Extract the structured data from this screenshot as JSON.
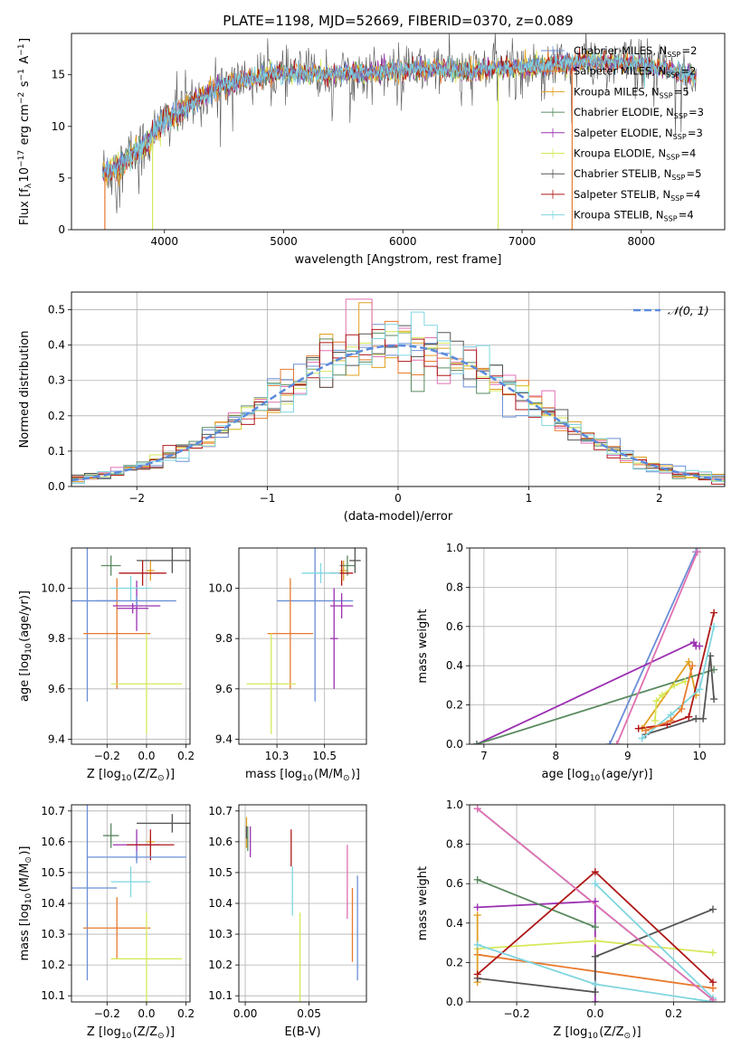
{
  "figure_title": "PLATE=1198, MJD=52669, FIBERID=0370, z=0.089",
  "series": [
    {
      "key": "chab_miles",
      "label": "Chabrier MILES, N<sub>SSP</sub>=2",
      "color": "#6b8fd6"
    },
    {
      "key": "salp_miles",
      "label": "Salpeter MILES, N<sub>SSP</sub>=2",
      "color": "#e87a2e"
    },
    {
      "key": "krou_miles",
      "label": "Kroupa MILES, N<sub>SSP</sub>=5",
      "color": "#e0a020"
    },
    {
      "key": "chab_elodie",
      "label": "Chabrier ELODIE, N<sub>SSP</sub>=3",
      "color": "#5a8a60"
    },
    {
      "key": "salp_elodie",
      "label": "Salpeter ELODIE, N<sub>SSP</sub>=3",
      "color": "#9b30b0"
    },
    {
      "key": "krou_elodie",
      "label": "Kroupa ELODIE, N<sub>SSP</sub>=4",
      "color": "#d6e85a"
    },
    {
      "key": "chab_stelib",
      "label": "Chabrier STELIB, N<sub>SSP</sub>=5",
      "color": "#555555"
    },
    {
      "key": "salp_stelib",
      "label": "Salpeter STELIB, N<sub>SSP</sub>=4",
      "color": "#b01818"
    },
    {
      "key": "krou_stelib",
      "label": "Kroupa STELIB, N<sub>SSP</sub>=4",
      "color": "#7fd6e0"
    }
  ],
  "chart_data": [
    {
      "id": "spectrum",
      "type": "line",
      "title": "PLATE=1198, MJD=52669, FIBERID=0370, z=0.089",
      "xlabel": "wavelength [Angstrom, rest frame]",
      "ylabel": "Flux [f<sub>λ</sub>10<sup>−17</sup> erg cm<sup>−2</sup> s<sup>−1</sup> A<sup>−1</sup>]",
      "xlim": [
        3220,
        8700
      ],
      "ylim": [
        0,
        19
      ],
      "xticks": [
        4000,
        5000,
        6000,
        7000,
        8000
      ],
      "yticks": [
        0,
        5,
        10,
        15
      ],
      "grid": false,
      "legend": "right",
      "continuum": {
        "x": [
          3480,
          3600,
          3700,
          3800,
          3900,
          4000,
          4100,
          4200,
          4300,
          4400,
          4500,
          4700,
          4900,
          5100,
          5300,
          5500,
          5700,
          5900,
          6100,
          6300,
          6500,
          6700,
          6900,
          7100,
          7300,
          7500,
          7700,
          7900,
          8100,
          8300,
          8450
        ],
        "y": [
          5.5,
          6.0,
          7.0,
          7.8,
          9.0,
          10.5,
          11.2,
          12.0,
          12.8,
          13.5,
          14.0,
          14.6,
          15.0,
          15.2,
          15.0,
          15.1,
          15.2,
          15.4,
          15.5,
          15.6,
          15.3,
          15.6,
          15.7,
          15.8,
          16.0,
          16.3,
          16.2,
          16.1,
          15.8,
          15.3,
          14.8
        ]
      }
    },
    {
      "id": "residuals",
      "type": "histogram",
      "xlabel": "(data-model)/error",
      "ylabel": "Normed distribution",
      "xlim": [
        -2.5,
        2.5
      ],
      "ylim": [
        0,
        0.55
      ],
      "xticks": [
        -2,
        -1,
        0,
        1,
        2
      ],
      "yticks": [
        0.0,
        0.1,
        0.2,
        0.3,
        0.4,
        0.5
      ],
      "grid": true,
      "legend": "top-right",
      "gauss_label": "𝒩(0, 1)",
      "gauss_color": "#5b8bdc",
      "bin_width": 0.1
    },
    {
      "id": "z_age",
      "type": "scatter",
      "xlabel": "Z [log<sub>10</sub>(Z/Z<sub>⊙</sub>)]",
      "ylabel": "age  [log<sub>10</sub>(age/yr)]",
      "xlim": [
        -0.38,
        0.22
      ],
      "ylim": [
        9.38,
        10.16
      ],
      "xticks": [
        -0.2,
        0.0,
        0.2
      ],
      "yticks": [
        9.4,
        9.6,
        9.8,
        10.0
      ],
      "grid": true,
      "points": [
        {
          "s": "chab_miles",
          "x": -0.3,
          "y": 9.95,
          "xe": 0.15,
          "ye": 0.4
        },
        {
          "s": "salp_miles",
          "x": -0.15,
          "y": 9.82,
          "xe": 0.17,
          "ye": 0.22
        },
        {
          "s": "krou_miles",
          "x": 0.02,
          "y": 10.07,
          "xe": 0.02,
          "ye": 0.04
        },
        {
          "s": "chab_elodie",
          "x": -0.18,
          "y": 10.09,
          "xe": 0.05,
          "ye": 0.04
        },
        {
          "s": "salp_elodie",
          "x": -0.05,
          "y": 9.93,
          "xe": 0.12,
          "ye": 0.1
        },
        {
          "s": "krou_elodie",
          "x": 0.0,
          "y": 9.62,
          "xe": 0.18,
          "ye": 0.2
        },
        {
          "s": "chab_stelib",
          "x": 0.13,
          "y": 10.11,
          "xe": 0.18,
          "ye": 0.05
        },
        {
          "s": "salp_stelib",
          "x": -0.02,
          "y": 10.06,
          "xe": 0.12,
          "ye": 0.05
        },
        {
          "s": "krou_stelib",
          "x": -0.08,
          "y": 10.0,
          "xe": 0.1,
          "ye": 0.05
        },
        {
          "s": "chab_miles",
          "x": -0.05,
          "y": 9.95,
          "xe": 0.2,
          "ye": 0.02
        },
        {
          "s": "salp_elodie",
          "x": -0.07,
          "y": 9.92,
          "xe": 0.08,
          "ye": 0.02
        }
      ]
    },
    {
      "id": "mass_age",
      "type": "scatter",
      "xlabel": "mass [log<sub>10</sub>(M/M<sub>⊙</sub>)]",
      "ylabel": "",
      "xlim": [
        10.05,
        10.72
      ],
      "ylim": [
        9.38,
        10.16
      ],
      "xticks": [
        10.25,
        10.5
      ],
      "yticks": [
        9.4,
        9.6,
        9.8,
        10.0
      ],
      "grid": true,
      "points": [
        {
          "s": "chab_miles",
          "x": 10.45,
          "y": 9.95,
          "xe": 0.2,
          "ye": 0.4
        },
        {
          "s": "salp_miles",
          "x": 10.32,
          "y": 9.82,
          "xe": 0.12,
          "ye": 0.22
        },
        {
          "s": "krou_miles",
          "x": 10.6,
          "y": 10.07,
          "xe": 0.02,
          "ye": 0.04
        },
        {
          "s": "chab_elodie",
          "x": 10.62,
          "y": 10.09,
          "xe": 0.04,
          "ye": 0.04
        },
        {
          "s": "salp_elodie",
          "x": 10.59,
          "y": 9.93,
          "xe": 0.06,
          "ye": 0.05
        },
        {
          "s": "krou_elodie",
          "x": 10.22,
          "y": 9.62,
          "xe": 0.13,
          "ye": 0.2
        },
        {
          "s": "chab_stelib",
          "x": 10.66,
          "y": 10.11,
          "xe": 0.03,
          "ye": 0.05
        },
        {
          "s": "salp_stelib",
          "x": 10.59,
          "y": 10.06,
          "xe": 0.06,
          "ye": 0.05
        },
        {
          "s": "krou_stelib",
          "x": 10.48,
          "y": 10.06,
          "xe": 0.1,
          "ye": 0.04
        },
        {
          "s": "salp_elodie",
          "x": 10.55,
          "y": 9.8,
          "xe": 0.02,
          "ye": 0.2
        }
      ]
    },
    {
      "id": "age_weight",
      "type": "line",
      "xlabel": "age  [log<sub>10</sub>(age/yr)]",
      "ylabel": "mass weight",
      "xlim": [
        6.8,
        10.35
      ],
      "ylim": [
        0,
        1.0
      ],
      "xticks": [
        7,
        8,
        9,
        10
      ],
      "yticks": [
        0.0,
        0.2,
        0.4,
        0.6,
        0.8,
        1.0
      ],
      "grid": true,
      "lines": [
        {
          "s": "chab_miles",
          "x": [
            8.75,
            9.95
          ],
          "y": [
            0.0,
            0.98
          ]
        },
        {
          "s": "salp_elodie",
          "x": [
            6.9,
            9.92,
            9.95,
            10.0
          ],
          "y": [
            0.0,
            0.52,
            0.5,
            0.5
          ]
        },
        {
          "s": "krou_miles",
          "x": [
            9.2,
            9.85,
            9.95
          ],
          "y": [
            0.08,
            0.42,
            0.25
          ]
        },
        {
          "s": "chab_elodie",
          "x": [
            6.9,
            10.2
          ],
          "y": [
            0.0,
            0.38
          ]
        },
        {
          "s": "krou_elodie",
          "x": [
            9.38,
            9.4,
            9.48,
            9.65,
            9.8
          ],
          "y": [
            0.12,
            0.22,
            0.25,
            0.3,
            0.32
          ]
        },
        {
          "s": "chab_stelib",
          "x": [
            9.25,
            9.95,
            10.05,
            10.15,
            10.2
          ],
          "y": [
            0.05,
            0.13,
            0.13,
            0.45,
            0.23
          ]
        },
        {
          "s": "salp_stelib",
          "x": [
            9.15,
            9.55,
            9.85,
            10.2
          ],
          "y": [
            0.08,
            0.1,
            0.14,
            0.67
          ]
        },
        {
          "s": "krou_stelib",
          "x": [
            9.2,
            9.6,
            10.0,
            10.2
          ],
          "y": [
            0.03,
            0.15,
            0.28,
            0.6
          ]
        },
        {
          "s": "salp_miles",
          "x": [
            9.25,
            9.6,
            9.75,
            9.9
          ],
          "y": [
            0.07,
            0.12,
            0.18,
            0.4
          ]
        },
        {
          "s": "krou_stelib",
          "x": [
            8.85,
            9.97
          ],
          "y": [
            0.0,
            0.98
          ],
          "color": "#e070b0"
        }
      ]
    },
    {
      "id": "z_mass",
      "type": "scatter",
      "xlabel": "Z [log<sub>10</sub>(Z/Z<sub>⊙</sub>)]",
      "ylabel": "mass [log<sub>10</sub>(M/M<sub>⊙</sub>)]",
      "xlim": [
        -0.38,
        0.22
      ],
      "ylim": [
        10.08,
        10.72
      ],
      "xticks": [
        -0.2,
        0.0,
        0.2
      ],
      "yticks": [
        10.1,
        10.2,
        10.3,
        10.4,
        10.5,
        10.6,
        10.7
      ],
      "grid": true,
      "points": [
        {
          "s": "chab_miles",
          "x": -0.3,
          "y": 10.45,
          "xe": 0.15,
          "ye": 0.3
        },
        {
          "s": "salp_miles",
          "x": -0.15,
          "y": 10.32,
          "xe": 0.17,
          "ye": 0.1
        },
        {
          "s": "krou_miles",
          "x": 0.02,
          "y": 10.6,
          "xe": 0.02,
          "ye": 0.02
        },
        {
          "s": "chab_elodie",
          "x": -0.18,
          "y": 10.62,
          "xe": 0.04,
          "ye": 0.04
        },
        {
          "s": "salp_elodie",
          "x": -0.05,
          "y": 10.59,
          "xe": 0.12,
          "ye": 0.05
        },
        {
          "s": "krou_elodie",
          "x": 0.0,
          "y": 10.22,
          "xe": 0.18,
          "ye": 0.15
        },
        {
          "s": "chab_stelib",
          "x": 0.13,
          "y": 10.66,
          "xe": 0.18,
          "ye": 0.03
        },
        {
          "s": "salp_stelib",
          "x": 0.02,
          "y": 10.59,
          "xe": 0.12,
          "ye": 0.05
        },
        {
          "s": "krou_stelib",
          "x": -0.08,
          "y": 10.47,
          "xe": 0.1,
          "ye": 0.05
        },
        {
          "s": "chab_miles",
          "x": -0.05,
          "y": 10.55,
          "xe": 0.25,
          "ye": 0.02
        }
      ]
    },
    {
      "id": "ebv_mass",
      "type": "scatter",
      "xlabel": "E(B-V)",
      "ylabel": "",
      "xlim": [
        -0.005,
        0.095
      ],
      "ylim": [
        10.08,
        10.72
      ],
      "xticks": [
        0.0,
        0.05
      ],
      "yticks": [
        10.1,
        10.2,
        10.3,
        10.4,
        10.5,
        10.6,
        10.7
      ],
      "grid": true,
      "points": [
        {
          "s": "chab_miles",
          "x": 0.088,
          "y": 10.32,
          "xe": 0.0,
          "ye": 0.17
        },
        {
          "s": "salp_miles",
          "x": 0.084,
          "y": 10.33,
          "xe": 0.0,
          "ye": 0.12
        },
        {
          "s": "krou_miles",
          "x": 0.001,
          "y": 10.63,
          "xe": 0.0,
          "ye": 0.05
        },
        {
          "s": "chab_elodie",
          "x": 0.002,
          "y": 10.61,
          "xe": 0.0,
          "ye": 0.04
        },
        {
          "s": "salp_elodie",
          "x": 0.004,
          "y": 10.6,
          "xe": 0.0,
          "ye": 0.05
        },
        {
          "s": "krou_elodie",
          "x": 0.043,
          "y": 10.22,
          "xe": 0.0,
          "ye": 0.15
        },
        {
          "s": "chab_stelib",
          "x": 0.001,
          "y": 10.63,
          "xe": 0.0,
          "ye": 0.02
        },
        {
          "s": "salp_stelib",
          "x": 0.036,
          "y": 10.58,
          "xe": 0.0,
          "ye": 0.06
        },
        {
          "s": "krou_stelib",
          "x": 0.037,
          "y": 10.44,
          "xe": 0.0,
          "ye": 0.08
        },
        {
          "s": "krou_stelib",
          "x": 0.08,
          "y": 10.47,
          "xe": 0.0,
          "ye": 0.12,
          "color": "#e070b0"
        }
      ]
    },
    {
      "id": "z_weight",
      "type": "line",
      "xlabel": "Z [log<sub>10</sub>(Z/Z<sub>⊙</sub>)]",
      "ylabel": "mass weight",
      "xlim": [
        -0.32,
        0.33
      ],
      "ylim": [
        0,
        1.0
      ],
      "xticks": [
        -0.2,
        0.0,
        0.2
      ],
      "yticks": [
        0.0,
        0.2,
        0.4,
        0.6,
        0.8,
        1.0
      ],
      "grid": true,
      "lines": [
        {
          "s": "chab_miles",
          "x": [
            -0.3,
            0.3
          ],
          "y": [
            0.98,
            0.01
          ]
        },
        {
          "s": "salp_elodie",
          "x": [
            -0.3,
            0.0,
            0.0
          ],
          "y": [
            0.48,
            0.51,
            0.0
          ]
        },
        {
          "s": "chab_elodie",
          "x": [
            -0.3,
            0.0
          ],
          "y": [
            0.62,
            0.38
          ]
        },
        {
          "s": "krou_elodie",
          "x": [
            -0.3,
            0.0,
            0.3
          ],
          "y": [
            0.27,
            0.31,
            0.25
          ]
        },
        {
          "s": "salp_miles",
          "x": [
            -0.3,
            0.3
          ],
          "y": [
            0.24,
            0.07
          ]
        },
        {
          "s": "krou_miles",
          "x": [
            -0.3,
            -0.3
          ],
          "y": [
            0.44,
            0.1
          ]
        },
        {
          "s": "chab_stelib",
          "x": [
            -0.3,
            0.0,
            0.0,
            0.3
          ],
          "y": [
            0.12,
            0.05,
            0.23,
            0.47
          ]
        },
        {
          "s": "salp_stelib",
          "x": [
            -0.3,
            0.0,
            0.3
          ],
          "y": [
            0.14,
            0.66,
            0.1
          ]
        },
        {
          "s": "krou_stelib",
          "x": [
            -0.3,
            0.0,
            0.3
          ],
          "y": [
            0.29,
            0.09,
            0.0
          ]
        },
        {
          "s": "krou_stelib",
          "x": [
            0.0,
            0.3
          ],
          "y": [
            0.6,
            0.02
          ]
        },
        {
          "s": "krou_stelib",
          "x": [
            -0.3,
            0.3
          ],
          "y": [
            0.98,
            0.01
          ],
          "color": "#e070b0"
        }
      ]
    }
  ]
}
